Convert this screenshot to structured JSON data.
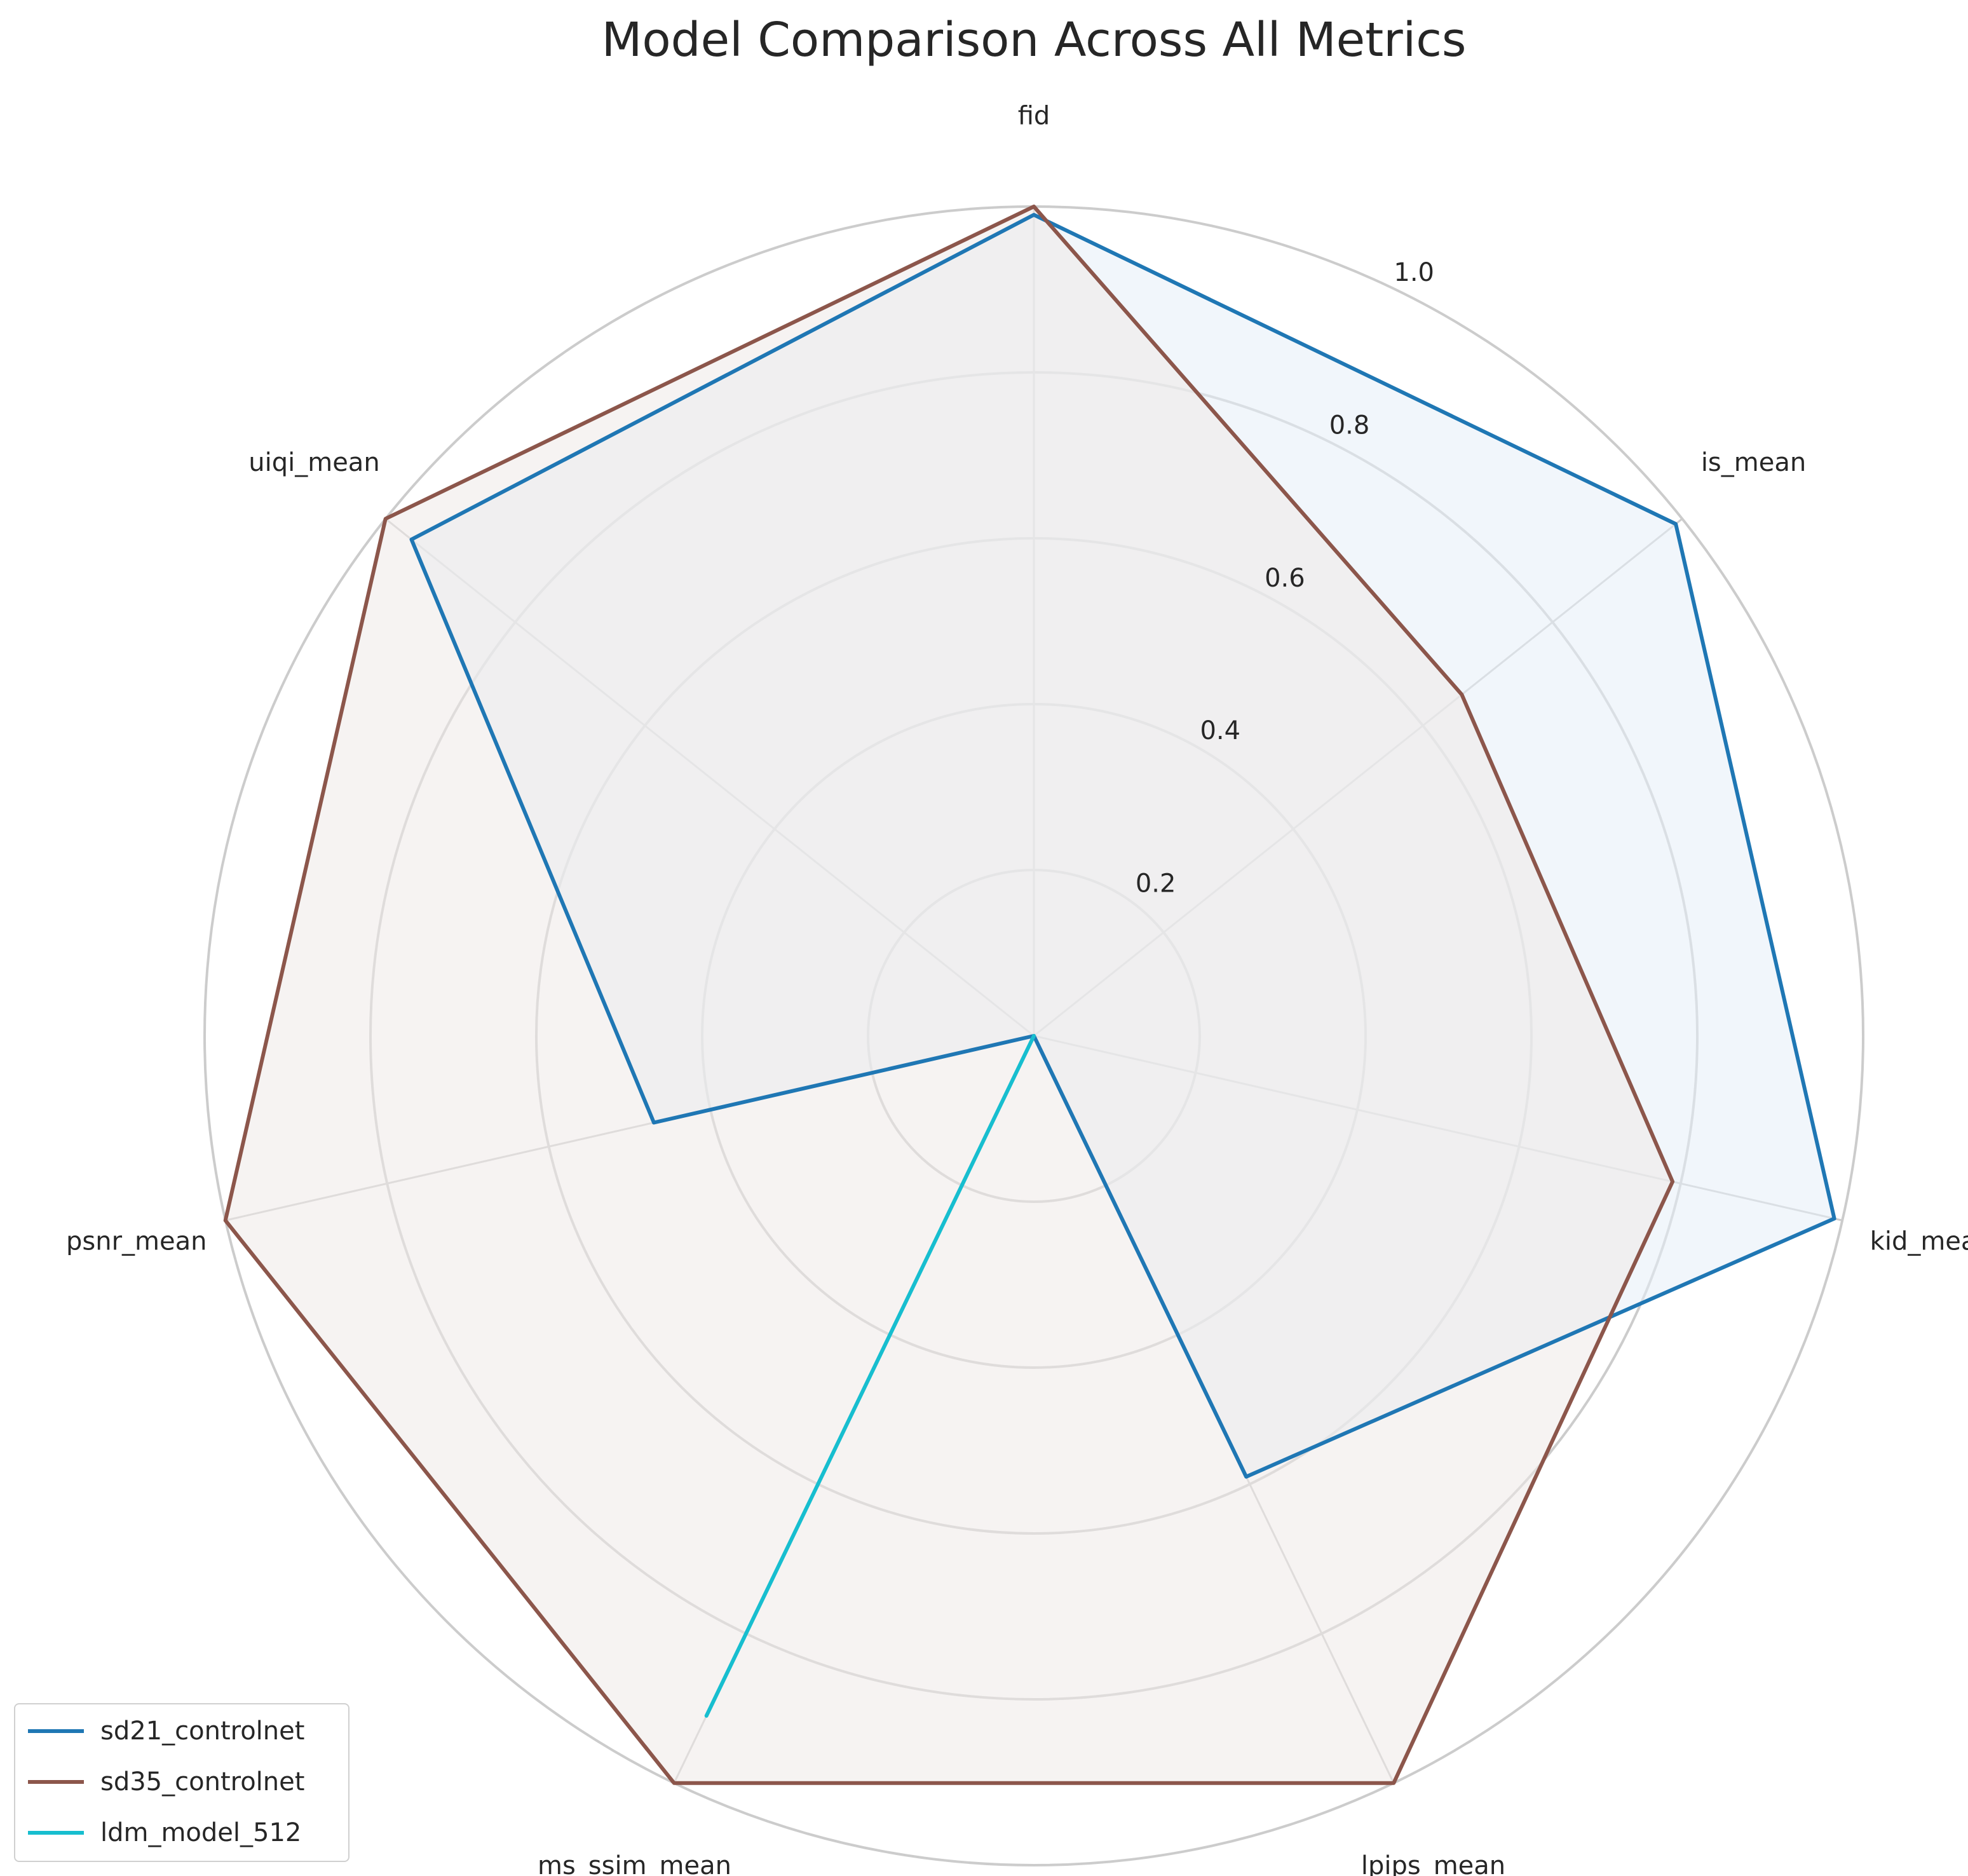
{
  "chart_data": {
    "type": "radar",
    "title": "Model Comparison Across All Metrics",
    "axes": [
      "fid",
      "is_mean",
      "kid_mean",
      "lpips_mean",
      "ms_ssim_mean",
      "psnr_mean",
      "uiqi_mean"
    ],
    "r_ticks": [
      0.2,
      0.4,
      0.6,
      0.8,
      1.0
    ],
    "r_tick_labels": [
      "0.2",
      "0.4",
      "0.6",
      "0.8",
      "1.0"
    ],
    "rlim": [
      0,
      1.0
    ],
    "grid": true,
    "legend_position": "lower-left",
    "series": [
      {
        "name": "sd21_controlnet",
        "color": "#1f77b4",
        "fill_color": "#e6eef7",
        "values": [
          0.99,
          0.99,
          0.99,
          0.59,
          0.0,
          0.47,
          0.96
        ]
      },
      {
        "name": "sd35_controlnet",
        "color": "#8c564b",
        "fill_color": "#efe9e7",
        "values": [
          1.0,
          0.66,
          0.79,
          1.0,
          1.0,
          1.0,
          1.0
        ]
      },
      {
        "name": "ldm_model_512",
        "color": "#17becf",
        "fill_color": "#d9f2f5",
        "values": [
          0.0,
          0.0,
          0.0,
          0.0,
          0.91,
          0.0,
          0.0
        ]
      }
    ]
  }
}
